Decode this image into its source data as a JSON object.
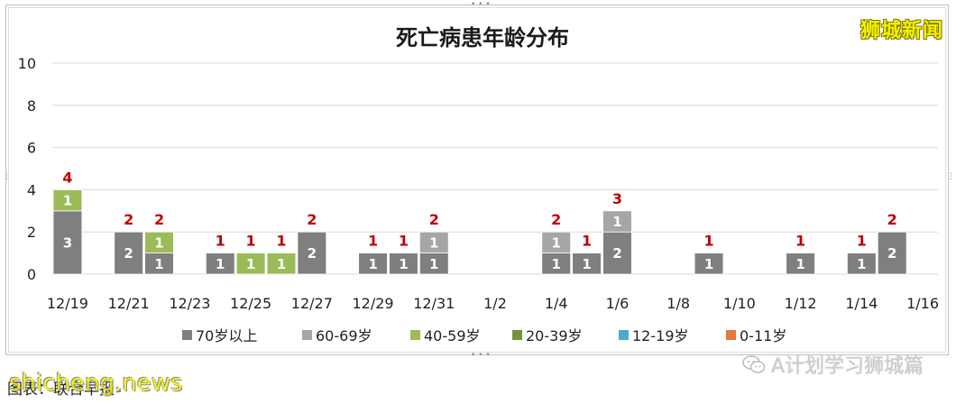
{
  "watermark_top_right": "狮城新闻",
  "watermark_bottom_left": "shicheng.news",
  "caption": "图表：联合早报",
  "caption_mark": "↵",
  "wechat_label": "A计划学习狮城篇",
  "colors": {
    "70+": "#7f7f7f",
    "60-69": "#a6a6a6",
    "40-59": "#9bbb59",
    "20-39": "#76923c",
    "12-19": "#4bacc6",
    "0-11": "#e07b39",
    "total_label": "#c00000",
    "grid": "#d9d9d9"
  },
  "chart_data": {
    "type": "bar",
    "stacked": true,
    "title": "死亡病患年龄分布",
    "ylim": [
      0,
      10
    ],
    "yticks": [
      "0",
      "2",
      "4",
      "6",
      "8",
      "10"
    ],
    "grid": true,
    "legend_position": "bottom",
    "categories": [
      "12/19",
      "12/20",
      "12/21",
      "12/22",
      "12/23",
      "12/24",
      "12/25",
      "12/26",
      "12/27",
      "12/28",
      "12/29",
      "12/30",
      "12/31",
      "1/1",
      "1/2",
      "1/3",
      "1/4",
      "1/5",
      "1/6",
      "1/7",
      "1/8",
      "1/9",
      "1/10",
      "1/11",
      "1/12",
      "1/13",
      "1/14",
      "1/15",
      "1/16"
    ],
    "xtick_labels": [
      "12/19",
      "12/21",
      "12/23",
      "12/25",
      "12/27",
      "12/29",
      "12/31",
      "1/2",
      "1/4",
      "1/6",
      "1/8",
      "1/10",
      "1/12",
      "1/14",
      "1/16"
    ],
    "series": [
      {
        "name": "70岁以上",
        "color_key": "70+",
        "values": [
          3,
          0,
          2,
          1,
          0,
          1,
          0,
          0,
          2,
          0,
          1,
          1,
          1,
          0,
          0,
          0,
          1,
          1,
          2,
          0,
          0,
          1,
          0,
          0,
          1,
          0,
          1,
          2,
          0
        ]
      },
      {
        "name": "60-69岁",
        "color_key": "60-69",
        "values": [
          0,
          0,
          0,
          0,
          0,
          0,
          0,
          0,
          0,
          0,
          0,
          0,
          1,
          0,
          0,
          0,
          1,
          0,
          1,
          0,
          0,
          0,
          0,
          0,
          0,
          0,
          0,
          0,
          0
        ]
      },
      {
        "name": "40-59岁",
        "color_key": "40-59",
        "values": [
          1,
          0,
          0,
          1,
          0,
          0,
          1,
          1,
          0,
          0,
          0,
          0,
          0,
          0,
          0,
          0,
          0,
          0,
          0,
          0,
          0,
          0,
          0,
          0,
          0,
          0,
          0,
          0,
          0
        ]
      },
      {
        "name": "20-39岁",
        "color_key": "20-39",
        "values": [
          0,
          0,
          0,
          0,
          0,
          0,
          0,
          0,
          0,
          0,
          0,
          0,
          0,
          0,
          0,
          0,
          0,
          0,
          0,
          0,
          0,
          0,
          0,
          0,
          0,
          0,
          0,
          0,
          0
        ]
      },
      {
        "name": "12-19岁",
        "color_key": "12-19",
        "values": [
          0,
          0,
          0,
          0,
          0,
          0,
          0,
          0,
          0,
          0,
          0,
          0,
          0,
          0,
          0,
          0,
          0,
          0,
          0,
          0,
          0,
          0,
          0,
          0,
          0,
          0,
          0,
          0,
          0
        ]
      },
      {
        "name": "0-11岁",
        "color_key": "0-11",
        "values": [
          0,
          0,
          0,
          0,
          0,
          0,
          0,
          0,
          0,
          0,
          0,
          0,
          0,
          0,
          0,
          0,
          0,
          0,
          0,
          0,
          0,
          0,
          0,
          0,
          0,
          0,
          0,
          0,
          0
        ]
      }
    ],
    "totals": [
      4,
      0,
      2,
      2,
      0,
      1,
      1,
      1,
      2,
      0,
      1,
      1,
      2,
      0,
      0,
      0,
      2,
      1,
      3,
      0,
      0,
      1,
      0,
      0,
      1,
      0,
      1,
      2,
      0
    ]
  }
}
